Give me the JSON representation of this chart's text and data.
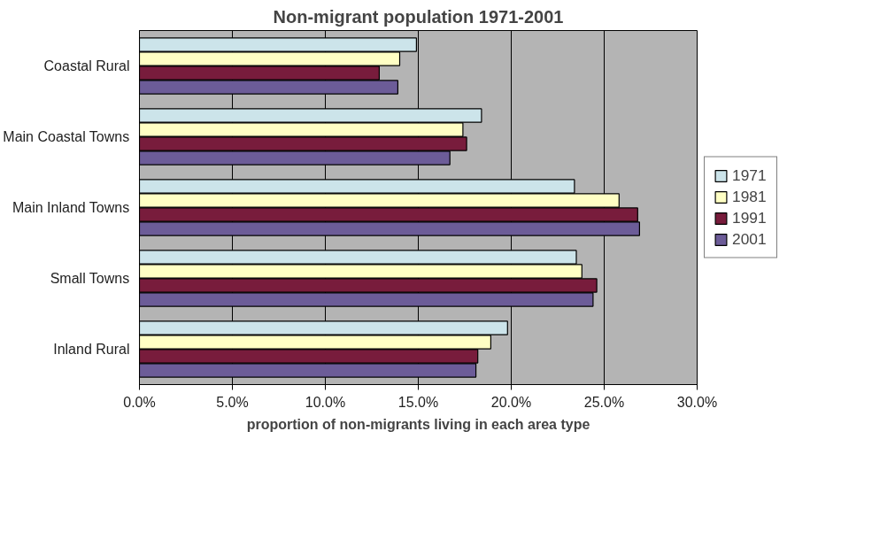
{
  "chart_data": {
    "type": "bar",
    "orientation": "horizontal",
    "title": "Non-migrant population 1971-2001",
    "xlabel": "proportion of non-migrants living in each area type",
    "categories": [
      "Coastal Rural",
      "Main Coastal Towns",
      "Main Inland Towns",
      "Small Towns",
      "Inland Rural"
    ],
    "series": [
      {
        "name": "1971",
        "color": "#cce4ea",
        "values": [
          14.9,
          18.4,
          23.4,
          23.5,
          19.8
        ]
      },
      {
        "name": "1981",
        "color": "#ffffc4",
        "values": [
          14.0,
          17.4,
          25.8,
          23.8,
          18.9
        ]
      },
      {
        "name": "1991",
        "color": "#781c3c",
        "values": [
          12.9,
          17.6,
          26.8,
          24.6,
          18.2
        ]
      },
      {
        "name": "2001",
        "color": "#6c5c98",
        "values": [
          13.9,
          16.7,
          26.9,
          24.4,
          18.1
        ]
      }
    ],
    "xlim": [
      0,
      30
    ],
    "xticks": [
      {
        "value": 0,
        "label": "0.0%"
      },
      {
        "value": 5,
        "label": "5.0%"
      },
      {
        "value": 10,
        "label": "10.0%"
      },
      {
        "value": 15,
        "label": "15.0%"
      },
      {
        "value": 20,
        "label": "20.0%"
      },
      {
        "value": 25,
        "label": "25.0%"
      },
      {
        "value": 30,
        "label": "30.0%"
      }
    ],
    "grid": "x",
    "legend": "right"
  }
}
